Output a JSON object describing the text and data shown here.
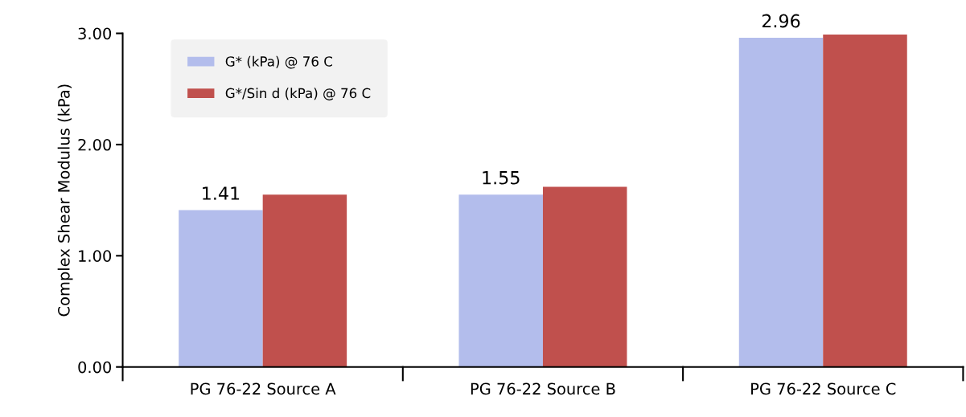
{
  "chart_data": {
    "type": "bar",
    "ylabel": "Complex Shear Modulus (kPa)",
    "categories": [
      "PG 76-22 Source A",
      "PG 76-22 Source B",
      "PG 76-22 Source C"
    ],
    "series": [
      {
        "name": "G* (kPa) @ 76 C",
        "color": "#b3bdec",
        "values": [
          1.41,
          1.55,
          2.96
        ],
        "value_labels": [
          "1.41",
          "1.55",
          "2.96"
        ]
      },
      {
        "name": "G*/Sin d (kPa) @ 76 C",
        "color": "#c0504d",
        "values": [
          1.55,
          1.62,
          2.99
        ]
      }
    ],
    "ylim": [
      0,
      3
    ],
    "yticks": [
      {
        "value": 0,
        "label": "0.00"
      },
      {
        "value": 1,
        "label": "1.00"
      },
      {
        "value": 2,
        "label": "2.00"
      },
      {
        "value": 3,
        "label": "3.00"
      }
    ],
    "legend": "top left"
  }
}
